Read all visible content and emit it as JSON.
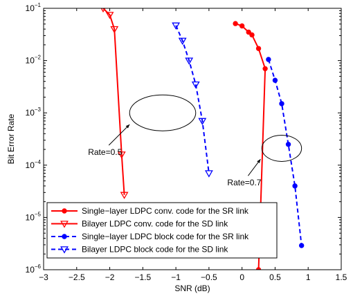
{
  "chart_data": {
    "type": "line",
    "title": "",
    "xlabel": "SNR (dB)",
    "ylabel": "Bit Error Rate",
    "xlim": [
      -3,
      1.5
    ],
    "ylim": [
      1e-06,
      0.1
    ],
    "yscale": "log",
    "grid": false,
    "legend_position": "bottom-left",
    "xticks": [
      {
        "value": -3,
        "label": "−3"
      },
      {
        "value": -2.5,
        "label": "−2.5"
      },
      {
        "value": -2,
        "label": "−2"
      },
      {
        "value": -1.5,
        "label": "−1.5"
      },
      {
        "value": -1,
        "label": "−1"
      },
      {
        "value": -0.5,
        "label": "−0.5"
      },
      {
        "value": 0,
        "label": "0"
      },
      {
        "value": 0.5,
        "label": "0.5"
      },
      {
        "value": 1,
        "label": "1"
      },
      {
        "value": 1.5,
        "label": "1.5"
      }
    ],
    "yticks": [
      {
        "exp": -6,
        "base": "10",
        "sup": "−6"
      },
      {
        "exp": -5,
        "base": "10",
        "sup": "−5"
      },
      {
        "exp": -4,
        "base": "10",
        "sup": "−4"
      },
      {
        "exp": -3,
        "base": "10",
        "sup": "−3"
      },
      {
        "exp": -2,
        "base": "10",
        "sup": "−2"
      },
      {
        "exp": -1,
        "base": "10",
        "sup": "−1"
      }
    ],
    "series": [
      {
        "name": "Single−layer LDPC conv. code for the SR link",
        "color": "#ff0000",
        "dash": false,
        "marker": "dot",
        "points": [
          [
            0.25,
            1e-06
          ],
          [
            0.35,
            0.007
          ],
          [
            0.25,
            0.017
          ],
          [
            0.15,
            0.031
          ],
          [
            0.1,
            0.035
          ],
          [
            0.0,
            0.046
          ],
          [
            -0.1,
            0.051
          ]
        ]
      },
      {
        "name": "Bilayer LDPC conv. code for the SD link",
        "color": "#ff0000",
        "dash": false,
        "marker": "triangle",
        "points": [
          [
            -1.78,
            2.7e-05
          ],
          [
            -1.82,
            0.00016
          ],
          [
            -1.93,
            0.04
          ],
          [
            -2.0,
            0.075
          ],
          [
            -2.1,
            0.1
          ]
        ]
      },
      {
        "name": "Single−layer LDPC block code for the SR link",
        "color": "#0000ff",
        "dash": true,
        "marker": "dot",
        "points": [
          [
            0.4,
            0.0105
          ],
          [
            0.5,
            0.0042
          ],
          [
            0.6,
            0.0015
          ],
          [
            0.7,
            0.00025
          ],
          [
            0.8,
            4e-05
          ],
          [
            0.9,
            2.9e-06
          ]
        ]
      },
      {
        "name": "Bilayer LDPC block code for the SD link",
        "color": "#0000ff",
        "dash": true,
        "marker": "triangle",
        "points": [
          [
            -1.0,
            0.047
          ],
          [
            -0.9,
            0.024
          ],
          [
            -0.8,
            0.01
          ],
          [
            -0.7,
            0.0035
          ],
          [
            -0.6,
            0.0007
          ],
          [
            -0.5,
            7e-05
          ]
        ]
      }
    ],
    "annotations": [
      {
        "label": "Rate=0.5",
        "ellipse_center": [
          -1.2,
          0.001
        ],
        "ellipse_rx": 0.5,
        "arrow_to": [
          -1.7,
          0.0006
        ]
      },
      {
        "label": "Rate=0.7",
        "ellipse_center": [
          0.6,
          0.00021
        ],
        "ellipse_rx": 0.3,
        "arrow_to": [
          0.28,
          0.00013
        ]
      }
    ]
  }
}
